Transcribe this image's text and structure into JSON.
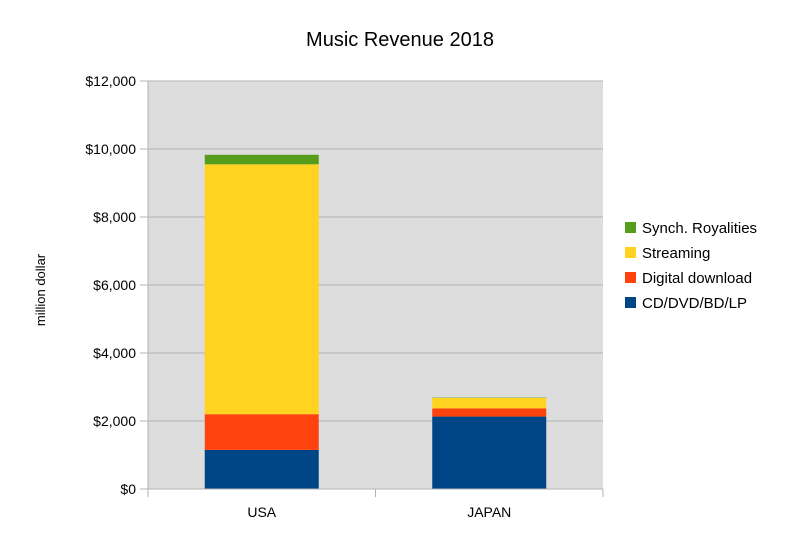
{
  "chart_data": {
    "type": "bar",
    "stacked": true,
    "title": "Music Revenue 2018",
    "xlabel": "",
    "ylabel": "million dollar",
    "categories": [
      "USA",
      "JAPAN"
    ],
    "ylim": [
      0,
      12000
    ],
    "yticks": [
      0,
      2000,
      4000,
      6000,
      8000,
      10000,
      12000
    ],
    "ytick_labels": [
      "$0",
      "$2,000",
      "$4,000",
      "$6,000",
      "$8,000",
      "$10,000",
      "$12,000"
    ],
    "grid": true,
    "legend_position": "right",
    "series": [
      {
        "name": "CD/DVD/BD/LP",
        "color": "#004586",
        "values": [
          1150,
          2130
        ]
      },
      {
        "name": "Digital download",
        "color": "#ff420e",
        "values": [
          1050,
          240
        ]
      },
      {
        "name": "Streaming",
        "color": "#ffd320",
        "values": [
          7350,
          310
        ]
      },
      {
        "name": "Synch. Royalities",
        "color": "#579d1c",
        "values": [
          280,
          10
        ]
      }
    ],
    "plot_background": "#dddddd"
  }
}
